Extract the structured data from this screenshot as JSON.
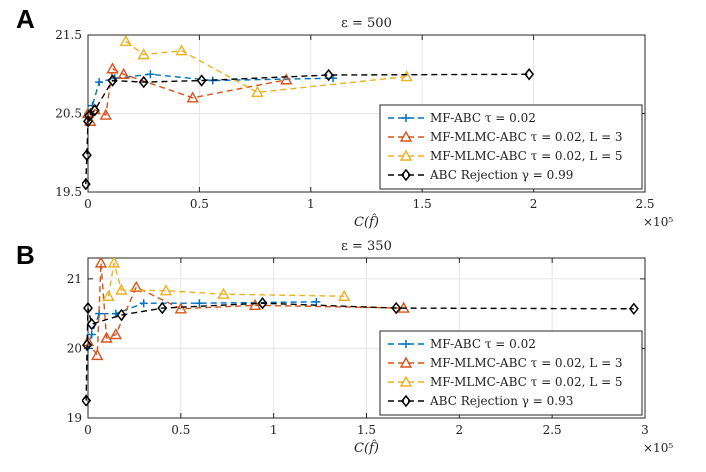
{
  "colors": {
    "mfabc": "#0072BD",
    "mlmc3": "#D95319",
    "mlmc5": "#EDB120",
    "rejection": "#000000"
  },
  "chart_data": [
    {
      "panel": "A",
      "type": "line",
      "title": "ε = 500",
      "xlabel": "C(f̂)",
      "ylabel": "",
      "xlim": [
        0,
        250000
      ],
      "ylim": [
        19.5,
        21.5
      ],
      "xticks": [
        0,
        50000,
        100000,
        150000,
        200000,
        250000
      ],
      "xtick_labels": [
        "0",
        "0.5",
        "1",
        "1.5",
        "2",
        "2.5"
      ],
      "yticks": [
        19.5,
        20.5,
        21.5
      ],
      "ytick_labels": [
        "19.5",
        "20.5",
        "21.5"
      ],
      "x_exponent": "×10⁵",
      "legend_position": "bottom-right",
      "series": [
        {
          "name": "MF-ABC τ = 0.02",
          "marker": "plus",
          "color_key": "mfabc",
          "x": [
            0,
            2000,
            5000,
            12000,
            28000,
            56000,
            110000
          ],
          "y": [
            20.5,
            20.6,
            20.9,
            20.95,
            21.0,
            20.92,
            20.95
          ]
        },
        {
          "name": "MF-MLMC-ABC τ = 0.02, L = 3",
          "marker": "triangle",
          "color_key": "mlmc3",
          "x": [
            0,
            1000,
            3000,
            8000,
            11000,
            16000,
            47000,
            89000
          ],
          "y": [
            20.5,
            20.4,
            20.55,
            20.48,
            21.07,
            21.0,
            20.7,
            20.93
          ]
        },
        {
          "name": "MF-MLMC-ABC τ = 0.02, L = 5",
          "marker": "triangle",
          "color_key": "mlmc5",
          "x": [
            17000,
            25000,
            42000,
            76000,
            143000
          ],
          "y": [
            21.42,
            21.25,
            21.3,
            20.77,
            20.97
          ]
        },
        {
          "name": "ABC Rejection γ = 0.99",
          "marker": "diamond",
          "color_key": "rejection",
          "x": [
            -1000,
            -500,
            0,
            500,
            3000,
            11000,
            25000,
            51000,
            108000,
            198000
          ],
          "y": [
            19.6,
            19.97,
            20.4,
            20.47,
            20.54,
            20.92,
            20.9,
            20.92,
            20.99,
            21.0
          ]
        }
      ]
    },
    {
      "panel": "B",
      "type": "line",
      "title": "ε = 350",
      "xlabel": "C(f̂)",
      "ylabel": "",
      "xlim": [
        0,
        300000
      ],
      "ylim": [
        19,
        21.3
      ],
      "xticks": [
        0,
        50000,
        100000,
        150000,
        200000,
        250000,
        300000
      ],
      "xtick_labels": [
        "0",
        "0.5",
        "1",
        "1.5",
        "2",
        "2.5",
        "3"
      ],
      "yticks": [
        19,
        20,
        21
      ],
      "ytick_labels": [
        "19",
        "20",
        "21"
      ],
      "x_exponent": "×10⁵",
      "legend_position": "bottom-right",
      "series": [
        {
          "name": "MF-ABC τ = 0.02",
          "marker": "plus",
          "color_key": "mfabc",
          "x": [
            0,
            2000,
            6000,
            15000,
            30000,
            60000,
            123000
          ],
          "y": [
            20.0,
            20.2,
            20.5,
            20.5,
            20.65,
            20.65,
            20.67
          ]
        },
        {
          "name": "MF-MLMC-ABC τ = 0.02, L = 3",
          "marker": "triangle",
          "color_key": "mlmc3",
          "x": [
            0,
            5000,
            7000,
            10000,
            15000,
            26000,
            50000,
            90000,
            170000
          ],
          "y": [
            20.1,
            19.9,
            21.23,
            20.15,
            20.2,
            20.88,
            20.57,
            20.62,
            20.58
          ]
        },
        {
          "name": "MF-MLMC-ABC τ = 0.02, L = 5",
          "marker": "triangle",
          "color_key": "mlmc5",
          "x": [
            11000,
            14000,
            18000,
            42000,
            73000,
            138000
          ],
          "y": [
            20.75,
            21.23,
            20.84,
            20.83,
            20.78,
            20.75
          ]
        },
        {
          "name": "ABC Rejection γ = 0.93",
          "marker": "diamond",
          "color_key": "rejection",
          "x": [
            -1000,
            -500,
            0,
            2000,
            18000,
            40000,
            94000,
            166000,
            294000
          ],
          "y": [
            19.25,
            20.05,
            20.58,
            20.35,
            20.48,
            20.58,
            20.65,
            20.58,
            20.57
          ]
        }
      ]
    }
  ]
}
